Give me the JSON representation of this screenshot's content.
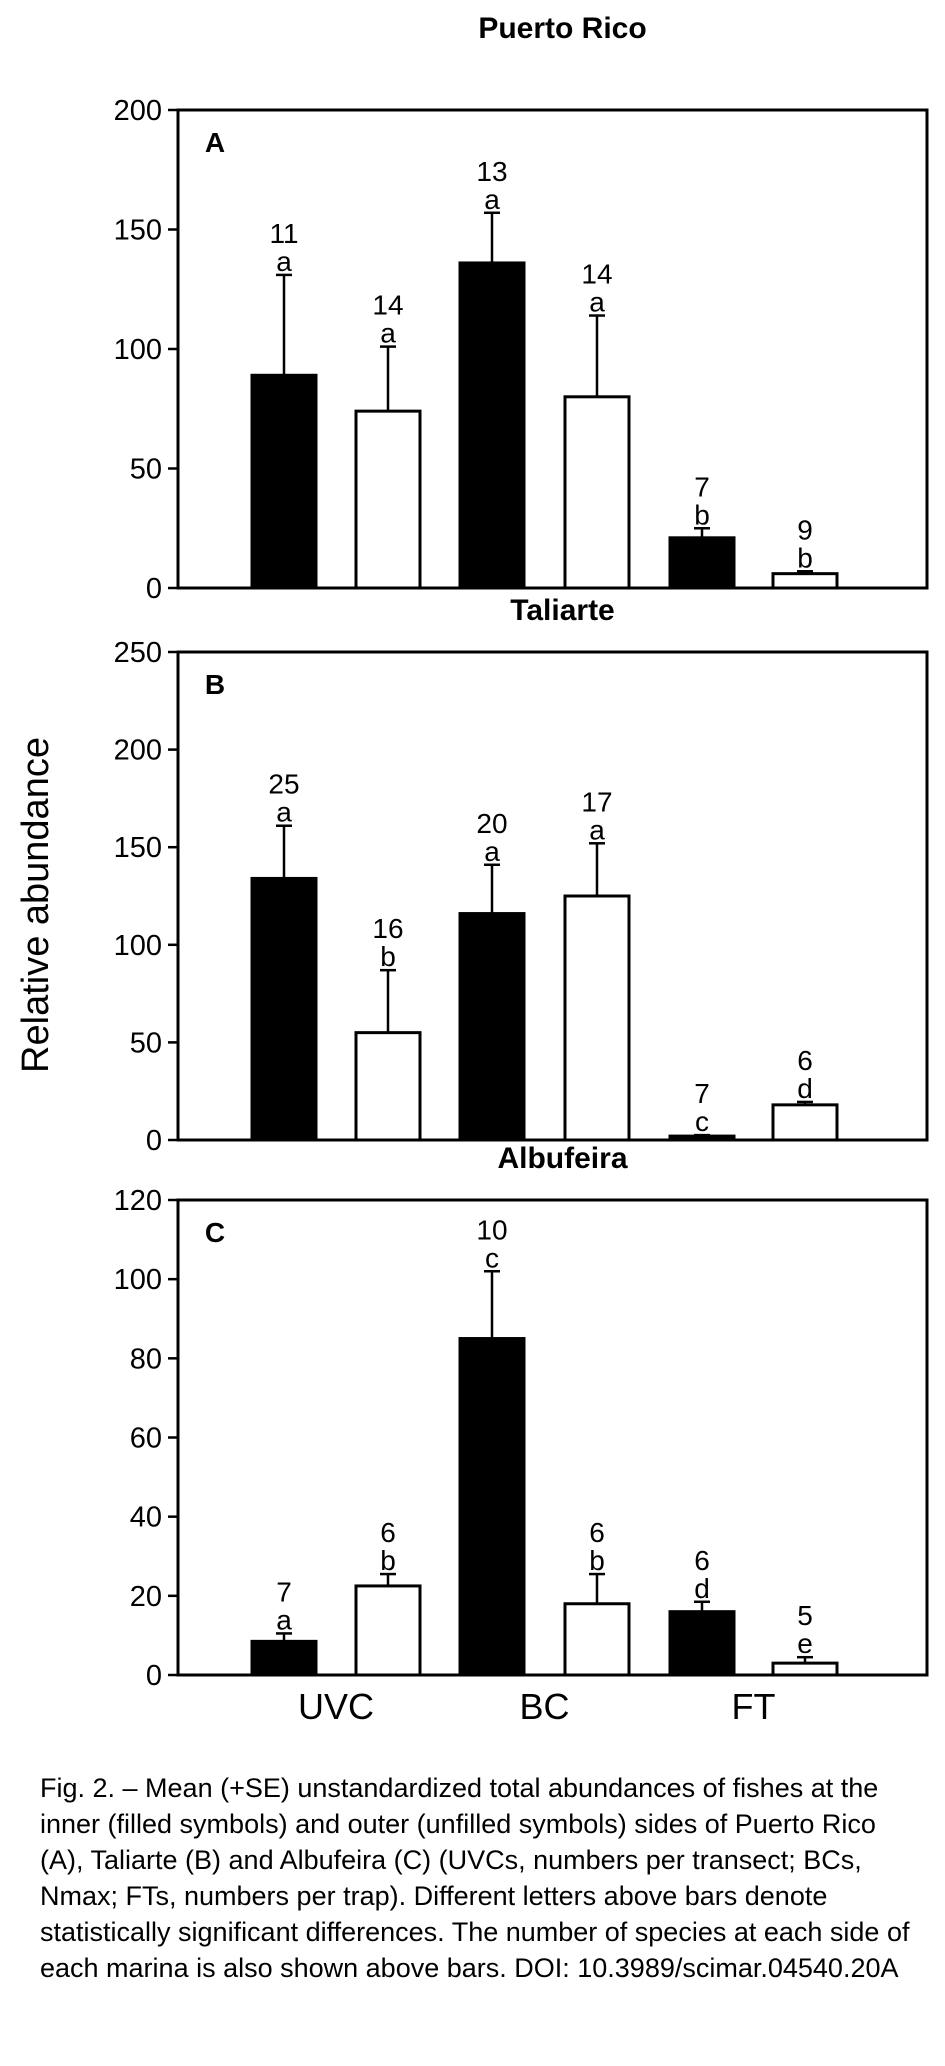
{
  "figure": {
    "ylabel": "Relative abundance",
    "categories": [
      "UVC",
      "BC",
      "FT"
    ],
    "colors": {
      "inner": "#000000",
      "outer": "#ffffff"
    }
  },
  "chart_data": [
    {
      "type": "bar",
      "title": "Puerto Rico",
      "panel_label": "A",
      "categories": [
        "UVC",
        "BC",
        "FT"
      ],
      "ylim": [
        0,
        200
      ],
      "yticks": [
        0,
        50,
        100,
        150,
        200
      ],
      "ylabel": "Relative abundance",
      "series": [
        {
          "fill": "inner",
          "values": [
            89,
            136,
            21
          ],
          "se": [
            42,
            21,
            4
          ],
          "species": [
            "11",
            "13",
            "7"
          ],
          "letters": [
            "a",
            "a",
            "b"
          ]
        },
        {
          "fill": "outer",
          "values": [
            74,
            80,
            6
          ],
          "se": [
            27,
            34,
            1
          ],
          "species": [
            "14",
            "14",
            "9"
          ],
          "letters": [
            "a",
            "a",
            "b"
          ]
        }
      ]
    },
    {
      "type": "bar",
      "title": "Taliarte",
      "panel_label": "B",
      "categories": [
        "UVC",
        "BC",
        "FT"
      ],
      "ylim": [
        0,
        250
      ],
      "yticks": [
        0,
        50,
        100,
        150,
        200,
        250
      ],
      "ylabel": "Relative abundance",
      "series": [
        {
          "fill": "inner",
          "values": [
            134,
            116,
            2
          ],
          "se": [
            27,
            25,
            0.5
          ],
          "species": [
            "25",
            "20",
            "7"
          ],
          "letters": [
            "a",
            "a",
            "c"
          ]
        },
        {
          "fill": "outer",
          "values": [
            55,
            125,
            18
          ],
          "se": [
            32,
            27,
            1.5
          ],
          "species": [
            "16",
            "17",
            "6"
          ],
          "letters": [
            "b",
            "a",
            "d"
          ]
        }
      ]
    },
    {
      "type": "bar",
      "title": "Albufeira",
      "panel_label": "C",
      "categories": [
        "UVC",
        "BC",
        "FT"
      ],
      "ylim": [
        0,
        120
      ],
      "yticks": [
        0,
        20,
        40,
        60,
        80,
        100,
        120
      ],
      "ylabel": "Relative abundance",
      "series": [
        {
          "fill": "inner",
          "values": [
            8.5,
            85,
            16
          ],
          "se": [
            2,
            17,
            2.5
          ],
          "species": [
            "7",
            "10",
            "6"
          ],
          "letters": [
            "a",
            "c",
            "d"
          ]
        },
        {
          "fill": "outer",
          "values": [
            22.5,
            18,
            3
          ],
          "se": [
            3,
            7.5,
            1.5
          ],
          "species": [
            "6",
            "6",
            "5"
          ],
          "letters": [
            "b",
            "b",
            "e"
          ]
        }
      ]
    }
  ],
  "caption": "Fig. 2. – Mean (+SE) unstandardized total abundances of fishes at the inner (filled symbols) and outer (unfilled symbols) sides of Puerto Rico (A), Taliarte (B) and Albufeira (C) (UVCs, numbers per transect; BCs, Nmax; FTs, numbers per trap). Different letters above bars denote statistically significant differences. The number of species at each side of each marina is also shown above bars. DOI: 10.3989/scimar.04540.20A"
}
